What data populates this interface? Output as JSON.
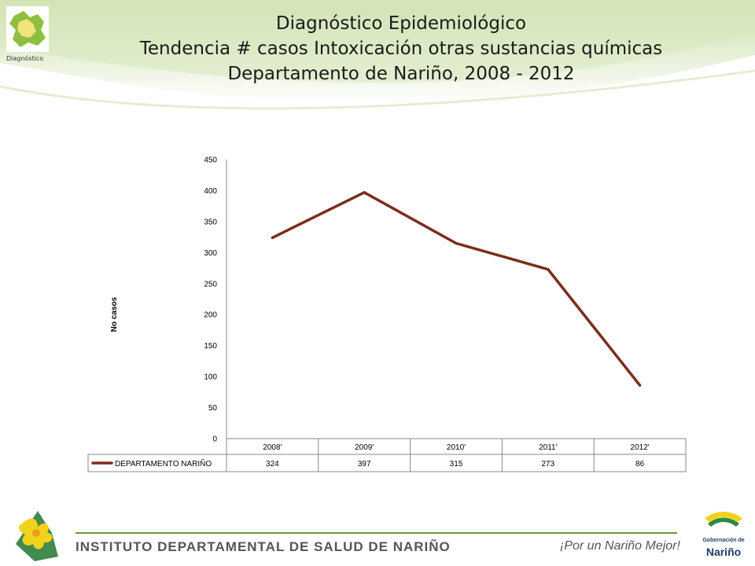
{
  "header": {
    "logo_caption": "Diagnóstico",
    "title_lines": [
      "Diagnóstico Epidemiológico",
      "Tendencia # casos Intoxicación otras sustancias químicas",
      "Departamento de Nariño,  2008 - 2012"
    ]
  },
  "chart_data": {
    "type": "line",
    "categories": [
      "2008'",
      "2009'",
      "2010'",
      "2011'",
      "2012'"
    ],
    "series": [
      {
        "name": "DEPARTAMENTO NARIÑO",
        "values": [
          324,
          397,
          315,
          273,
          86
        ],
        "color": "#7a2e1a"
      }
    ],
    "ylabel": "No  casos",
    "ylim": [
      0,
      450
    ],
    "yticks": [
      0,
      50,
      100,
      150,
      200,
      250,
      300,
      350,
      400,
      450
    ],
    "grid": false,
    "legend": "data-table-bottom"
  },
  "footer": {
    "org": "INSTITUTO DEPARTAMENTAL DE SALUD DE NARIÑO",
    "slogan": "¡Por un Nariño Mejor!",
    "gob_line1": "Gobernación de",
    "gob_line2": "Nariño"
  },
  "colors": {
    "header_green": "#c6dba0",
    "footer_line": "#6a9a2a",
    "series_line": "#7a2e1a"
  }
}
